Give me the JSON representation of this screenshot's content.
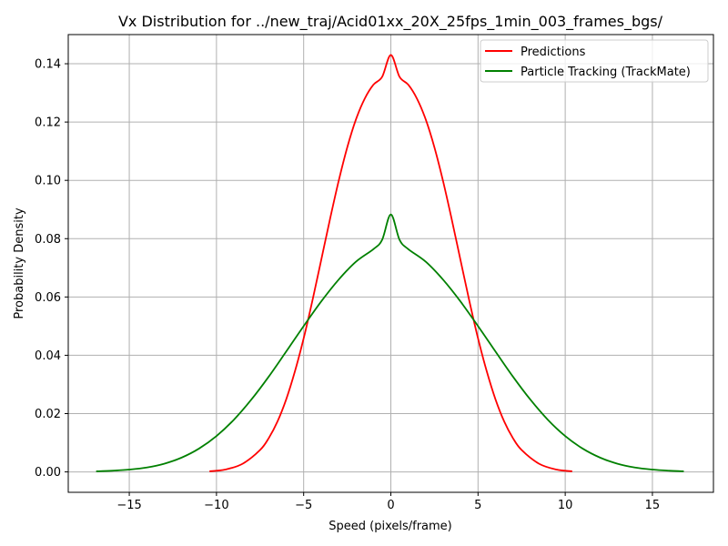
{
  "chart_data": {
    "type": "line",
    "title": "Vx Distribution for ../new_traj/Acid01xx_20X_25fps_1min_003_frames_bgs/",
    "xlabel": "Speed (pixels/frame)",
    "ylabel": "Probability Density",
    "xlim": [
      -18.5,
      18.5
    ],
    "ylim": [
      -0.007,
      0.15
    ],
    "xticks": [
      -15,
      -10,
      -5,
      0,
      5,
      10,
      15
    ],
    "xtick_labels": [
      "−15",
      "−10",
      "−5",
      "0",
      "5",
      "10",
      "15"
    ],
    "yticks": [
      0.0,
      0.02,
      0.04,
      0.06,
      0.08,
      0.1,
      0.12,
      0.14
    ],
    "ytick_labels": [
      "0.00",
      "0.02",
      "0.04",
      "0.06",
      "0.08",
      "0.10",
      "0.12",
      "0.14"
    ],
    "grid": true,
    "legend_position": "top-right",
    "series": [
      {
        "name": "Predictions",
        "color": "#ff0000",
        "x": [
          -10.4,
          -9.5,
          -8.5,
          -7.5,
          -7.0,
          -6.5,
          -6.0,
          -5.5,
          -5.0,
          -4.5,
          -4.0,
          -3.5,
          -3.0,
          -2.5,
          -2.0,
          -1.5,
          -1.0,
          -0.5,
          0.0,
          0.5,
          1.0,
          1.5,
          2.0,
          2.5,
          3.0,
          3.5,
          4.0,
          4.5,
          5.0,
          5.5,
          6.0,
          6.5,
          7.0,
          7.5,
          8.5,
          9.5,
          10.4
        ],
        "y": [
          0.0002,
          0.0008,
          0.0028,
          0.0075,
          0.0116,
          0.0173,
          0.0249,
          0.0345,
          0.0458,
          0.0587,
          0.0725,
          0.0864,
          0.0996,
          0.1113,
          0.1209,
          0.128,
          0.1328,
          0.1355,
          0.143,
          0.1355,
          0.1328,
          0.128,
          0.1209,
          0.1113,
          0.0996,
          0.0864,
          0.0725,
          0.0587,
          0.0458,
          0.0345,
          0.0249,
          0.0173,
          0.0116,
          0.0075,
          0.0028,
          0.0008,
          0.0002
        ]
      },
      {
        "name": "Particle Tracking (TrackMate)",
        "color": "#008000",
        "x": [
          -16.9,
          -16.0,
          -15.0,
          -14.0,
          -13.0,
          -12.0,
          -11.0,
          -10.0,
          -9.0,
          -8.0,
          -7.0,
          -6.0,
          -5.0,
          -4.0,
          -3.0,
          -2.0,
          -1.0,
          -0.5,
          0.0,
          0.5,
          1.0,
          2.0,
          3.0,
          4.0,
          5.0,
          6.0,
          7.0,
          8.0,
          9.0,
          10.0,
          11.0,
          12.0,
          13.0,
          14.0,
          15.0,
          16.0,
          16.8
        ],
        "y": [
          0.0002,
          0.0004,
          0.0008,
          0.0015,
          0.0028,
          0.0049,
          0.008,
          0.0123,
          0.0179,
          0.0248,
          0.0327,
          0.0413,
          0.05,
          0.0584,
          0.0659,
          0.0721,
          0.0764,
          0.0796,
          0.0883,
          0.0796,
          0.0764,
          0.0721,
          0.0659,
          0.0584,
          0.05,
          0.0413,
          0.0327,
          0.0248,
          0.0179,
          0.0123,
          0.008,
          0.0049,
          0.0028,
          0.0015,
          0.0008,
          0.0004,
          0.0002
        ]
      }
    ]
  }
}
